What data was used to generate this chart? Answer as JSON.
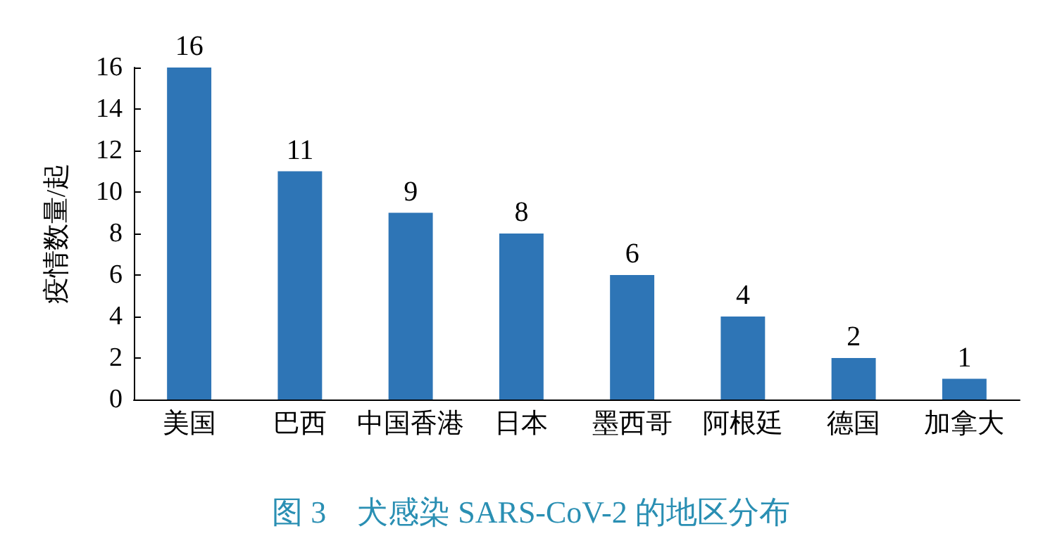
{
  "chart_data": {
    "type": "bar",
    "title": "图 3　犬感染 SARS-CoV-2 的地区分布",
    "ylabel": "疫情数量/起",
    "categories": [
      "美国",
      "巴西",
      "中国香港",
      "日本",
      "墨西哥",
      "阿根廷",
      "德国",
      "加拿大"
    ],
    "values": [
      16,
      11,
      9,
      8,
      6,
      4,
      2,
      1
    ],
    "color": "#2e75b6",
    "ylim": [
      0,
      16
    ],
    "yticks": [
      0,
      2,
      4,
      6,
      8,
      10,
      12,
      14,
      16
    ],
    "data_labels": true
  }
}
